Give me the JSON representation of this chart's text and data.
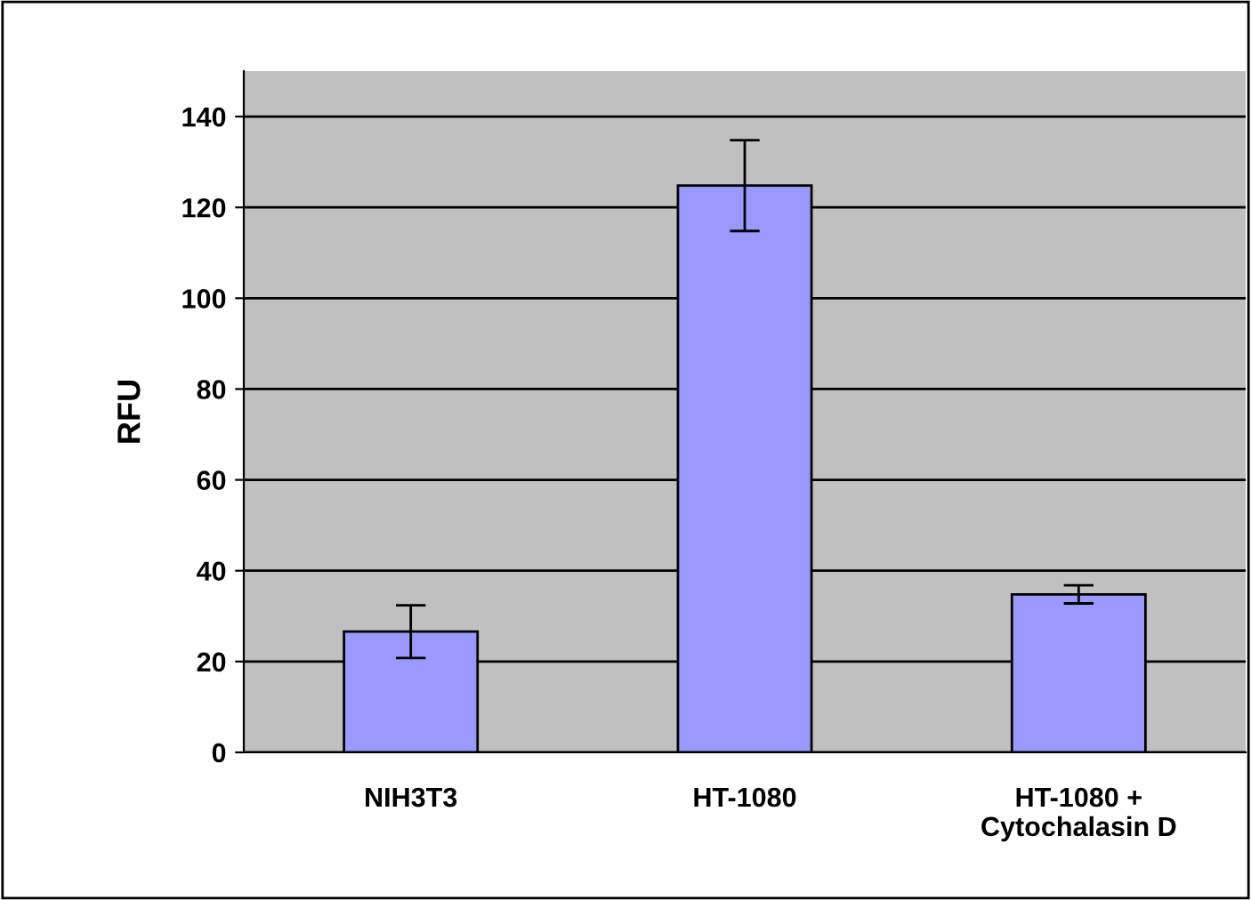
{
  "chart_data": {
    "type": "bar",
    "ylabel": "RFU",
    "categories": [
      "NIH3T3",
      "HT-1080",
      "HT-1080 +\nCytochalasin D"
    ],
    "values": [
      26.6,
      124.8,
      34.8
    ],
    "errors": [
      5.8,
      10,
      2
    ],
    "color": "#9999ff",
    "ylim": [
      0,
      150
    ],
    "yticks": [
      0,
      20,
      40,
      60,
      80,
      100,
      120,
      140
    ],
    "grid": "y"
  }
}
